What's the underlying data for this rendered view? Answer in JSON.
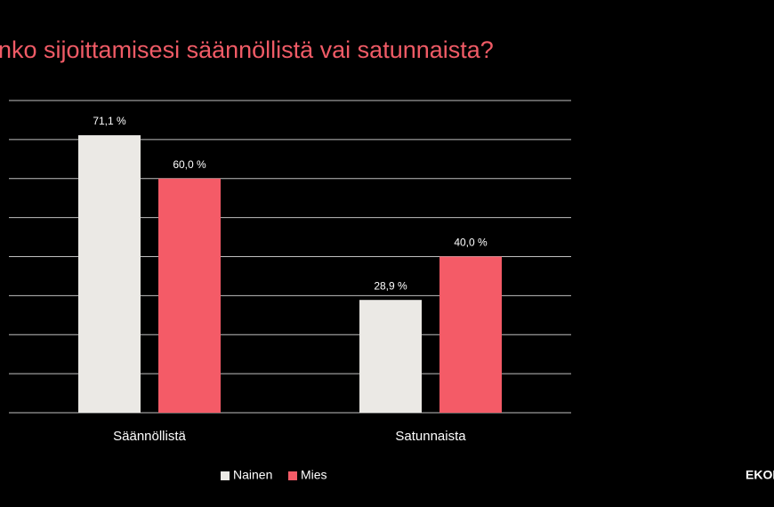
{
  "chart_data": {
    "type": "bar",
    "title": "nko sijoittamisesi säännöllistä vai satunnaista?",
    "categories": [
      "Säännöllistä",
      "Satunnaista"
    ],
    "series": [
      {
        "name": "Nainen",
        "color": "#ebe9e5",
        "values": [
          71.1,
          28.9
        ],
        "value_labels": [
          "71,1 %",
          "28,9 %"
        ]
      },
      {
        "name": "Mies",
        "color": "#f45b67",
        "values": [
          60.0,
          40.0
        ],
        "value_labels": [
          "60,0 %",
          "40,0 %"
        ]
      }
    ],
    "ylim": [
      0,
      80
    ],
    "yticks": [
      0,
      10,
      20,
      30,
      40,
      50,
      60,
      70,
      80
    ],
    "grid": true,
    "legend": "bottom",
    "brand": "EKON"
  }
}
